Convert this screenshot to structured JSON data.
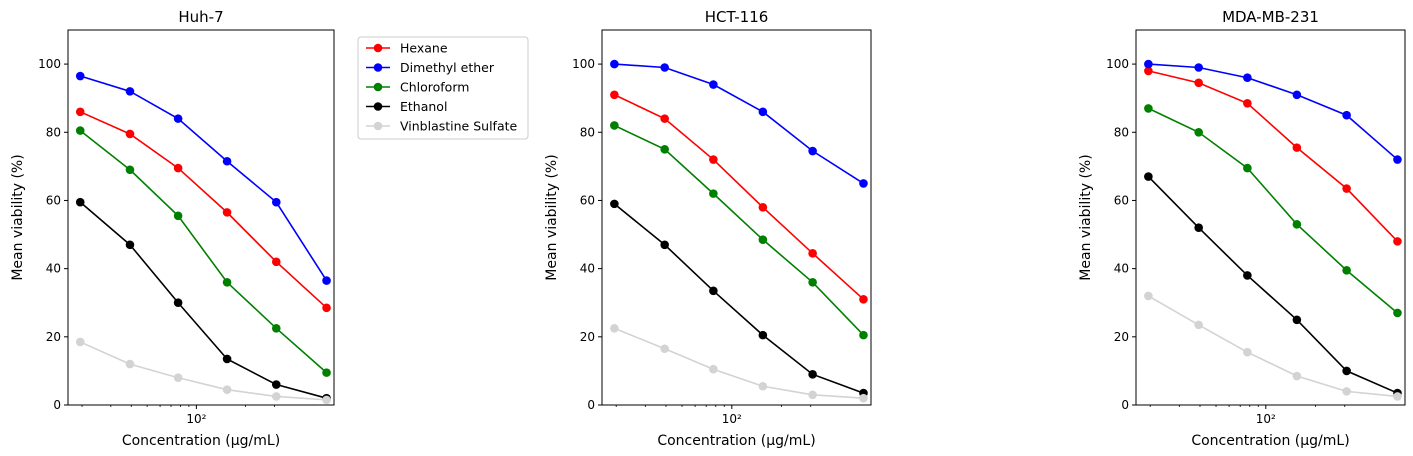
{
  "chart_data": [
    {
      "type": "line",
      "title": "Huh-7",
      "xlabel": "Concentration (µg/mL)",
      "ylabel": "Mean viability (%)",
      "xscale": "log",
      "xlim": [
        15.6,
        400
      ],
      "ylim": [
        0,
        110
      ],
      "xticks": [
        100
      ],
      "xtick_labels": [
        "10²"
      ],
      "yticks": [
        0,
        20,
        40,
        60,
        80,
        100
      ],
      "legend": "outside-right",
      "grid": false,
      "x": [
        19.5,
        39,
        78,
        156,
        312.5,
        625
      ],
      "series": [
        {
          "name": "Hexane",
          "color": "#ff0000",
          "values": [
            86,
            79.5,
            69.5,
            56.5,
            42,
            28.5
          ]
        },
        {
          "name": "Dimethyl ether",
          "color": "#0000ff",
          "values": [
            96.5,
            92,
            84,
            71.5,
            59.5,
            36.5
          ]
        },
        {
          "name": "Chloroform",
          "color": "#008000",
          "values": [
            80.5,
            69,
            55.5,
            36,
            22.5,
            9.5
          ]
        },
        {
          "name": "Ethanol",
          "color": "#000000",
          "values": [
            59.5,
            47,
            30,
            13.5,
            6,
            2
          ]
        },
        {
          "name": "Vinblastine Sulfate",
          "color": "#d3d3d3",
          "values": [
            18.5,
            12,
            8,
            4.5,
            2.5,
            1.5
          ]
        }
      ]
    },
    {
      "type": "line",
      "title": "HCT-116",
      "xlabel": "Concentration (µg/mL)",
      "ylabel": "Mean viability (%)",
      "xscale": "log",
      "xlim": [
        15.6,
        400
      ],
      "ylim": [
        0,
        110
      ],
      "xticks": [
        100
      ],
      "xtick_labels": [
        "10²"
      ],
      "yticks": [
        0,
        20,
        40,
        60,
        80,
        100
      ],
      "grid": false,
      "x": [
        19.5,
        39,
        78,
        156,
        312.5,
        625
      ],
      "series": [
        {
          "name": "Hexane",
          "color": "#ff0000",
          "values": [
            91,
            84,
            72,
            58,
            44.5,
            31
          ]
        },
        {
          "name": "Dimethyl ether",
          "color": "#0000ff",
          "values": [
            100,
            99,
            94,
            86,
            74.5,
            65
          ]
        },
        {
          "name": "Chloroform",
          "color": "#008000",
          "values": [
            82,
            75,
            62,
            48.5,
            36,
            20.5
          ]
        },
        {
          "name": "Ethanol",
          "color": "#000000",
          "values": [
            59,
            47,
            33.5,
            20.5,
            9,
            3.5
          ]
        },
        {
          "name": "Vinblastine Sulfate",
          "color": "#d3d3d3",
          "values": [
            22.5,
            16.5,
            10.5,
            5.5,
            3,
            2
          ]
        }
      ]
    },
    {
      "type": "line",
      "title": "MDA-MB-231",
      "xlabel": "Concentration (µg/mL)",
      "ylabel": "Mean viability (%)",
      "xscale": "log",
      "xlim": [
        15.6,
        400
      ],
      "ylim": [
        0,
        110
      ],
      "xticks": [
        100
      ],
      "xtick_labels": [
        "10²"
      ],
      "yticks": [
        0,
        20,
        40,
        60,
        80,
        100
      ],
      "grid": false,
      "x": [
        19.5,
        39,
        78,
        156,
        312.5,
        625
      ],
      "series": [
        {
          "name": "Hexane",
          "color": "#ff0000",
          "values": [
            98,
            94.5,
            88.5,
            75.5,
            63.5,
            48
          ]
        },
        {
          "name": "Dimethyl ether",
          "color": "#0000ff",
          "values": [
            100,
            99,
            96,
            91,
            85,
            72
          ]
        },
        {
          "name": "Chloroform",
          "color": "#008000",
          "values": [
            87,
            80,
            69.5,
            53,
            39.5,
            27
          ]
        },
        {
          "name": "Ethanol",
          "color": "#000000",
          "values": [
            67,
            52,
            38,
            25,
            10,
            3.5
          ]
        },
        {
          "name": "Vinblastine Sulfate",
          "color": "#d3d3d3",
          "values": [
            32,
            23.5,
            15.5,
            8.5,
            4,
            2.5
          ]
        }
      ]
    }
  ]
}
